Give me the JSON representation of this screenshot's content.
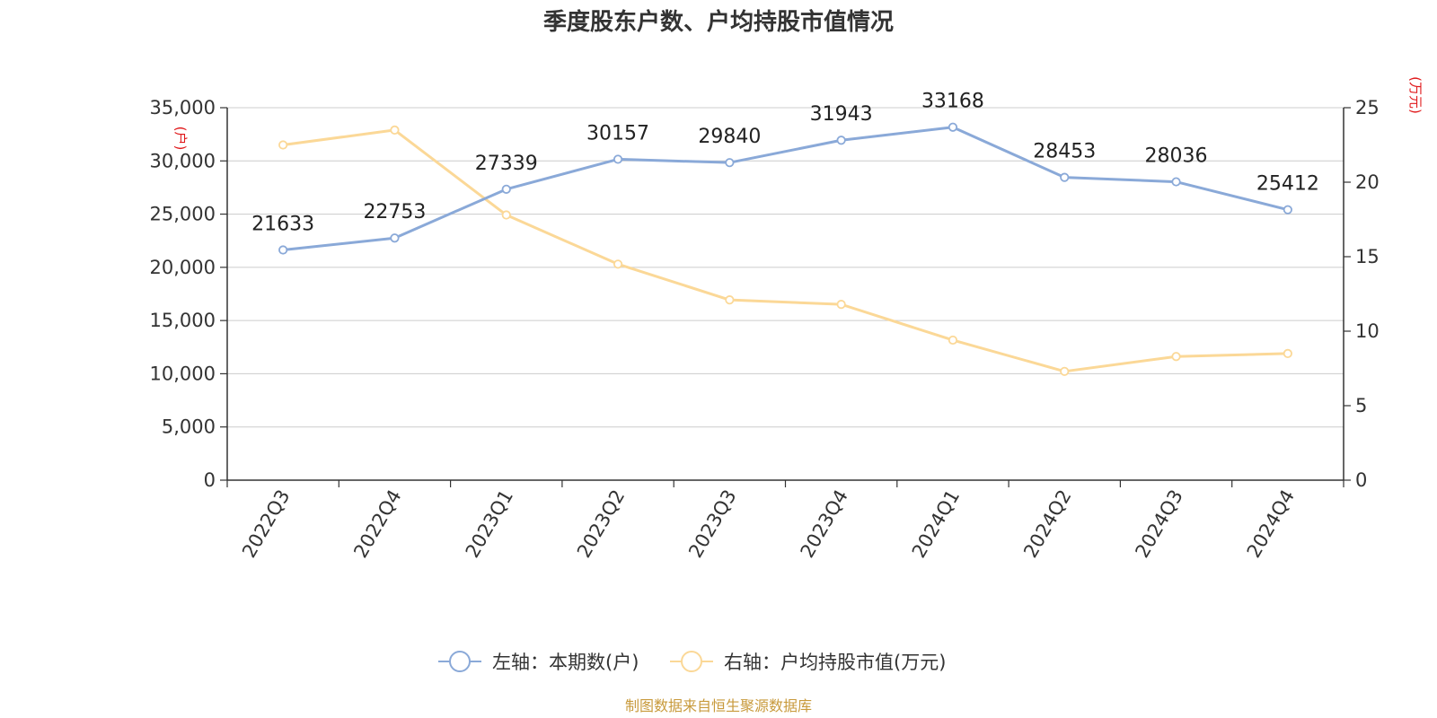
{
  "chart_data": {
    "type": "line",
    "title": "季度股东户数、户均持股市值情况",
    "categories": [
      "2022Q3",
      "2022Q4",
      "2023Q1",
      "2023Q2",
      "2023Q3",
      "2023Q4",
      "2024Q1",
      "2024Q2",
      "2024Q3",
      "2024Q4"
    ],
    "series": [
      {
        "name": "左轴：本期数(户)",
        "axis": "left",
        "color": "#8aa9d8",
        "values": [
          21633,
          22753,
          27339,
          30157,
          29840,
          31943,
          33168,
          28453,
          28036,
          25412
        ],
        "show_labels": true
      },
      {
        "name": "右轴：户均持股市值(万元)",
        "axis": "right",
        "color": "#fbd897",
        "values": [
          22.5,
          23.5,
          17.8,
          14.5,
          12.1,
          11.8,
          9.4,
          7.3,
          8.3,
          8.5
        ],
        "show_labels": false
      }
    ],
    "y_left": {
      "unit": "(户)",
      "ylim": [
        0,
        35000
      ],
      "ticks": [
        "0",
        "5,000",
        "10,000",
        "15,000",
        "20,000",
        "25,000",
        "30,000",
        "35,000"
      ]
    },
    "y_right": {
      "unit": "(万元)",
      "ylim": [
        0,
        25
      ],
      "ticks": [
        "0",
        "5",
        "10",
        "15",
        "20",
        "25"
      ]
    },
    "grid": true,
    "legend_position": "bottom-center"
  },
  "source_note": "制图数据来自恒生聚源数据库"
}
